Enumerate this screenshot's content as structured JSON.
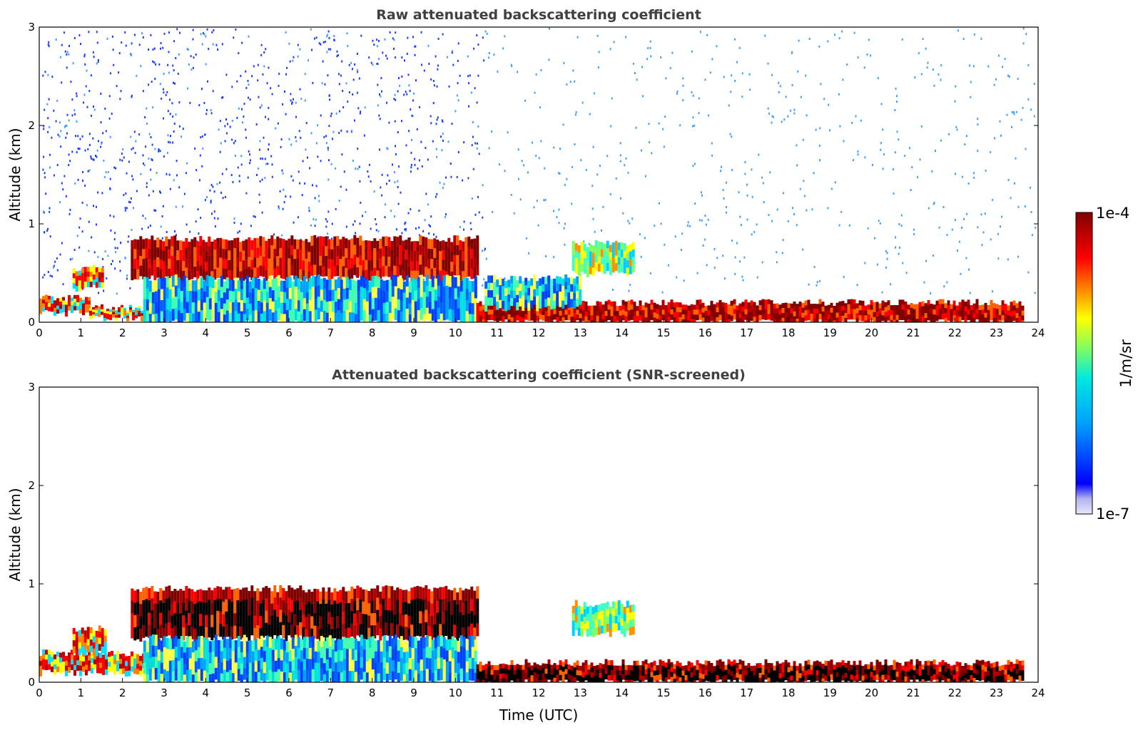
{
  "chart_data": [
    {
      "type": "heatmap",
      "title": "Raw attenuated backscattering coefficient",
      "xlabel": "",
      "ylabel": "Altitude (km)",
      "xlim": [
        0,
        24
      ],
      "ylim": [
        0,
        3
      ],
      "xticks": [
        "0",
        "1",
        "2",
        "3",
        "4",
        "5",
        "6",
        "7",
        "8",
        "9",
        "10",
        "11",
        "12",
        "13",
        "14",
        "15",
        "16",
        "17",
        "18",
        "19",
        "20",
        "21",
        "22",
        "23",
        "24"
      ],
      "yticks": [
        "0",
        "1",
        "2",
        "3"
      ],
      "noise": {
        "dense_until_hour": 10.7,
        "dense_color": "#1a3cff",
        "sparse_color": "#3fa0ff"
      },
      "layers": [
        {
          "x": [
            0.0,
            1.2
          ],
          "y": [
            0.1,
            0.25
          ],
          "level": "high"
        },
        {
          "x": [
            1.2,
            2.8
          ],
          "y": [
            0.05,
            0.15
          ],
          "level": "high"
        },
        {
          "x": [
            0.8,
            1.5
          ],
          "y": [
            0.35,
            0.55
          ],
          "level": "high"
        },
        {
          "x": [
            2.2,
            10.5
          ],
          "y": [
            0.45,
            0.85
          ],
          "level": "very_high"
        },
        {
          "x": [
            2.5,
            10.5
          ],
          "y": [
            0.0,
            0.45
          ],
          "level": "medium"
        },
        {
          "x": [
            10.5,
            23.6
          ],
          "y": [
            0.0,
            0.2
          ],
          "level": "very_high"
        },
        {
          "x": [
            10.7,
            13.0
          ],
          "y": [
            0.15,
            0.45
          ],
          "level": "medium"
        },
        {
          "x": [
            12.8,
            14.3
          ],
          "y": [
            0.5,
            0.8
          ],
          "level": "medium_high"
        }
      ]
    },
    {
      "type": "heatmap",
      "title": "Attenuated backscattering coefficient (SNR-screened)",
      "xlabel": "Time (UTC)",
      "ylabel": "Altitude (km)",
      "xlim": [
        0,
        24
      ],
      "ylim": [
        0,
        3
      ],
      "xticks": [
        "0",
        "1",
        "2",
        "3",
        "4",
        "5",
        "6",
        "7",
        "8",
        "9",
        "10",
        "11",
        "12",
        "13",
        "14",
        "15",
        "16",
        "17",
        "18",
        "19",
        "20",
        "21",
        "22",
        "23",
        "24"
      ],
      "yticks": [
        "0",
        "1",
        "2",
        "3"
      ],
      "saturated_color": "#000000",
      "layers": [
        {
          "x": [
            0.0,
            2.8
          ],
          "y": [
            0.1,
            0.3
          ],
          "level": "high"
        },
        {
          "x": [
            0.8,
            1.6
          ],
          "y": [
            0.3,
            0.55
          ],
          "level": "high"
        },
        {
          "x": [
            2.2,
            10.5
          ],
          "y": [
            0.45,
            0.95
          ],
          "level": "very_high"
        },
        {
          "x": [
            2.5,
            10.5
          ],
          "y": [
            0.0,
            0.45
          ],
          "level": "medium"
        },
        {
          "x": [
            10.5,
            23.6
          ],
          "y": [
            0.0,
            0.2
          ],
          "level": "very_high"
        },
        {
          "x": [
            12.8,
            14.3
          ],
          "y": [
            0.5,
            0.8
          ],
          "level": "medium_high"
        }
      ]
    }
  ],
  "colorbar": {
    "label": "1/m/sr",
    "max_label": "1e-4",
    "min_label": "1e-7",
    "colors": [
      "#e6e6fa",
      "#c8c8f5",
      "#a0a0f0",
      "#0000ff",
      "#0050ff",
      "#00a0ff",
      "#00e0ff",
      "#40ffc0",
      "#a0ff60",
      "#ffff00",
      "#ffc000",
      "#ff6000",
      "#ff0000",
      "#c00000",
      "#800000"
    ]
  }
}
